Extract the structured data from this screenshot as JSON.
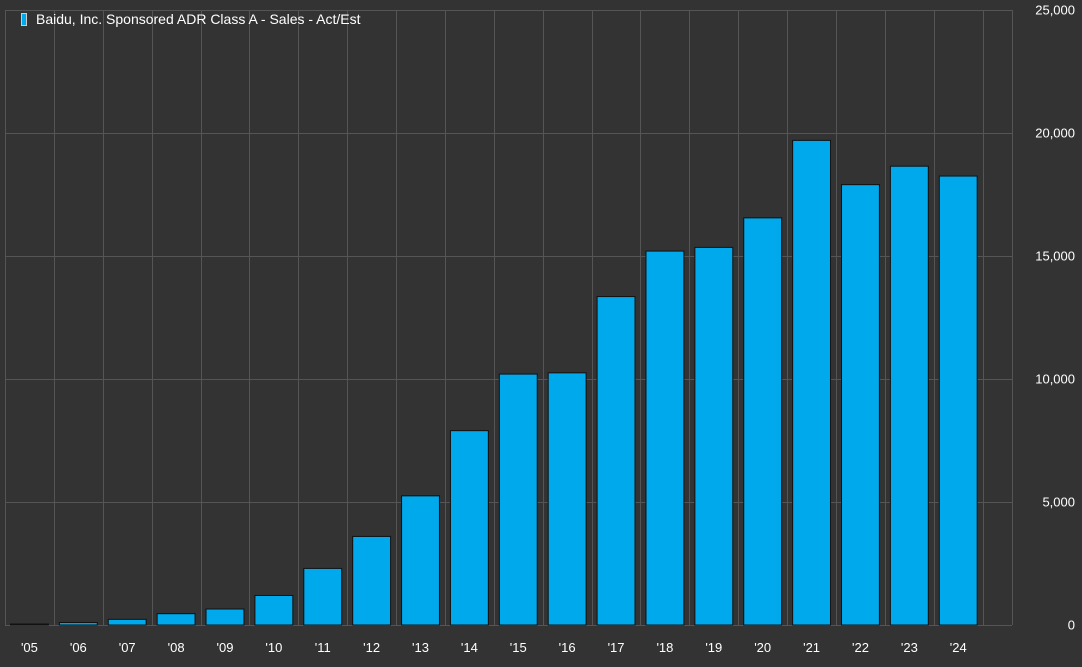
{
  "chart_data": {
    "type": "bar",
    "title": "Baidu, Inc. Sponsored ADR Class A - Sales - Act/Est",
    "categories": [
      "'05",
      "'06",
      "'07",
      "'08",
      "'09",
      "'10",
      "'11",
      "'12",
      "'13",
      "'14",
      "'15",
      "'16",
      "'17",
      "'18",
      "'19",
      "'20",
      "'21",
      "'22",
      "'23",
      "'24"
    ],
    "series": [
      {
        "name": "Baidu, Inc. Sponsored ADR Class A - Sales - Act/Est",
        "color": "#00a8ec",
        "values": [
          40,
          100,
          230,
          460,
          650,
          1200,
          2300,
          3600,
          5250,
          7900,
          10200,
          10250,
          13350,
          15200,
          15350,
          16550,
          19700,
          17900,
          18650,
          18250
        ]
      }
    ],
    "ylim": [
      0,
      25000
    ],
    "y_ticks": [
      0,
      5000,
      10000,
      15000,
      20000,
      25000
    ],
    "y_tick_labels": [
      "0",
      "5,000",
      "10,000",
      "15,000",
      "20,000",
      "25,000"
    ],
    "y_axis_position": "right",
    "grid": true,
    "legend_position": "top-left",
    "colors": {
      "background": "#333333",
      "grid": "#555555",
      "bar": "#00a8ec",
      "bar_outline": "#111111",
      "text": "#ffffff"
    }
  }
}
